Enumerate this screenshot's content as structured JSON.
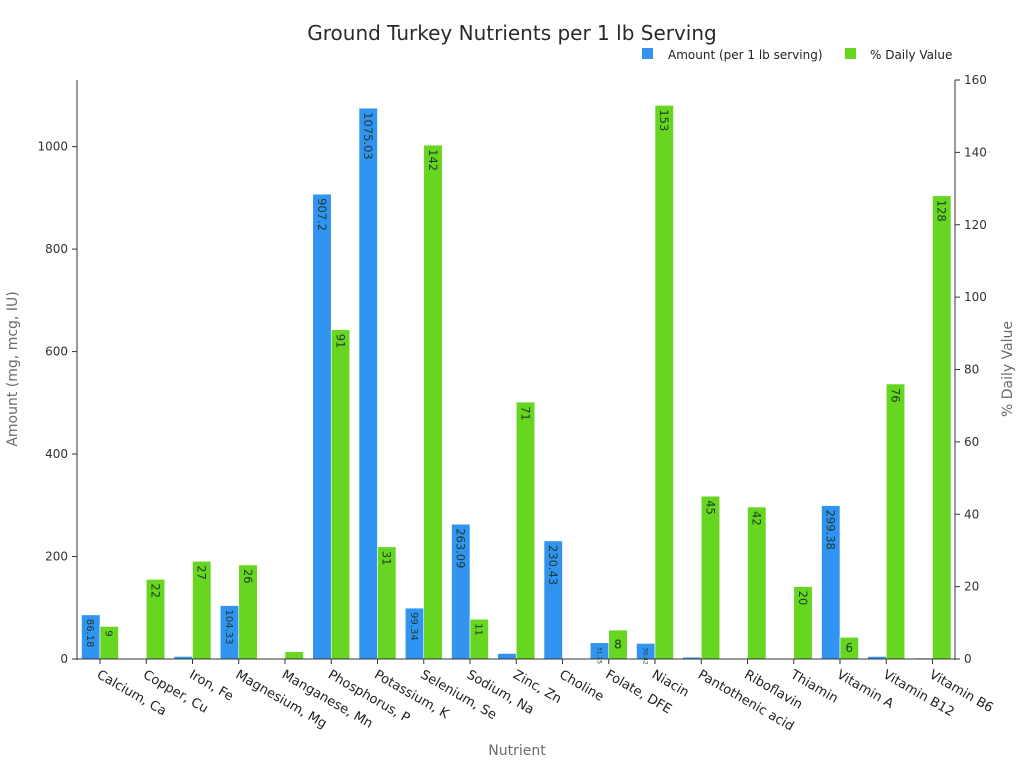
{
  "chart_data": {
    "type": "bar",
    "title": "Ground Turkey Nutrients per 1 lb Serving",
    "xlabel": "Nutrient",
    "ylabel_left": "Amount (mg, mcg, IU)",
    "ylabel_right": "% Daily Value",
    "ylim_left": [
      0,
      1130
    ],
    "ylim_right": [
      0,
      160
    ],
    "yticks_left": [
      "0",
      "200",
      "400",
      "600",
      "800",
      "1000"
    ],
    "yticks_right": [
      "0",
      "20",
      "40",
      "60",
      "80",
      "100",
      "120",
      "140",
      "160"
    ],
    "legend_position": "top-right",
    "grid": false,
    "categories": [
      "Calcium, Ca",
      "Copper, Cu",
      "Iron, Fe",
      "Magnesium, Mg",
      "Manganese, Mn",
      "Phosphorus, P",
      "Potassium, K",
      "Selenium, Se",
      "Sodium, Na",
      "Zinc, Zn",
      "Choline",
      "Folate, DFE",
      "Niacin",
      "Pantothenic acid",
      "Riboflavin",
      "Thiamin",
      "Vitamin A",
      "Vitamin B12",
      "Vitamin B6"
    ],
    "series": [
      {
        "name": "Amount (per 1 lb serving)",
        "axis": "left",
        "color": "#3194f0",
        "values": [
          86.18,
          0.2,
          4.98,
          104.33,
          0.03,
          907.2,
          1075.03,
          99.34,
          263.09,
          10.8,
          230.43,
          31.75,
          30.42,
          3.54,
          0.71,
          0.27,
          299.38,
          4.94,
          1.9
        ],
        "labels": [
          "86.18",
          "",
          "",
          "104.33",
          "",
          "907.2",
          "1075.03",
          "99.34",
          "263.09",
          "10.8",
          "230.43",
          "31.75",
          "30.42",
          "",
          "",
          "",
          "299.38",
          "",
          ""
        ]
      },
      {
        "name": "% Daily Value",
        "axis": "right",
        "color": "#66d620",
        "values": [
          9,
          22,
          27,
          26,
          2,
          91,
          31,
          142,
          11,
          71,
          0,
          8,
          153,
          45,
          42,
          20,
          6,
          76,
          128
        ],
        "labels": [
          "9",
          "22",
          "27",
          "26",
          "",
          "91",
          "31",
          "142",
          "11",
          "71",
          "",
          "8",
          "153",
          "45",
          "42",
          "20",
          "6",
          "76",
          "128"
        ]
      }
    ]
  }
}
